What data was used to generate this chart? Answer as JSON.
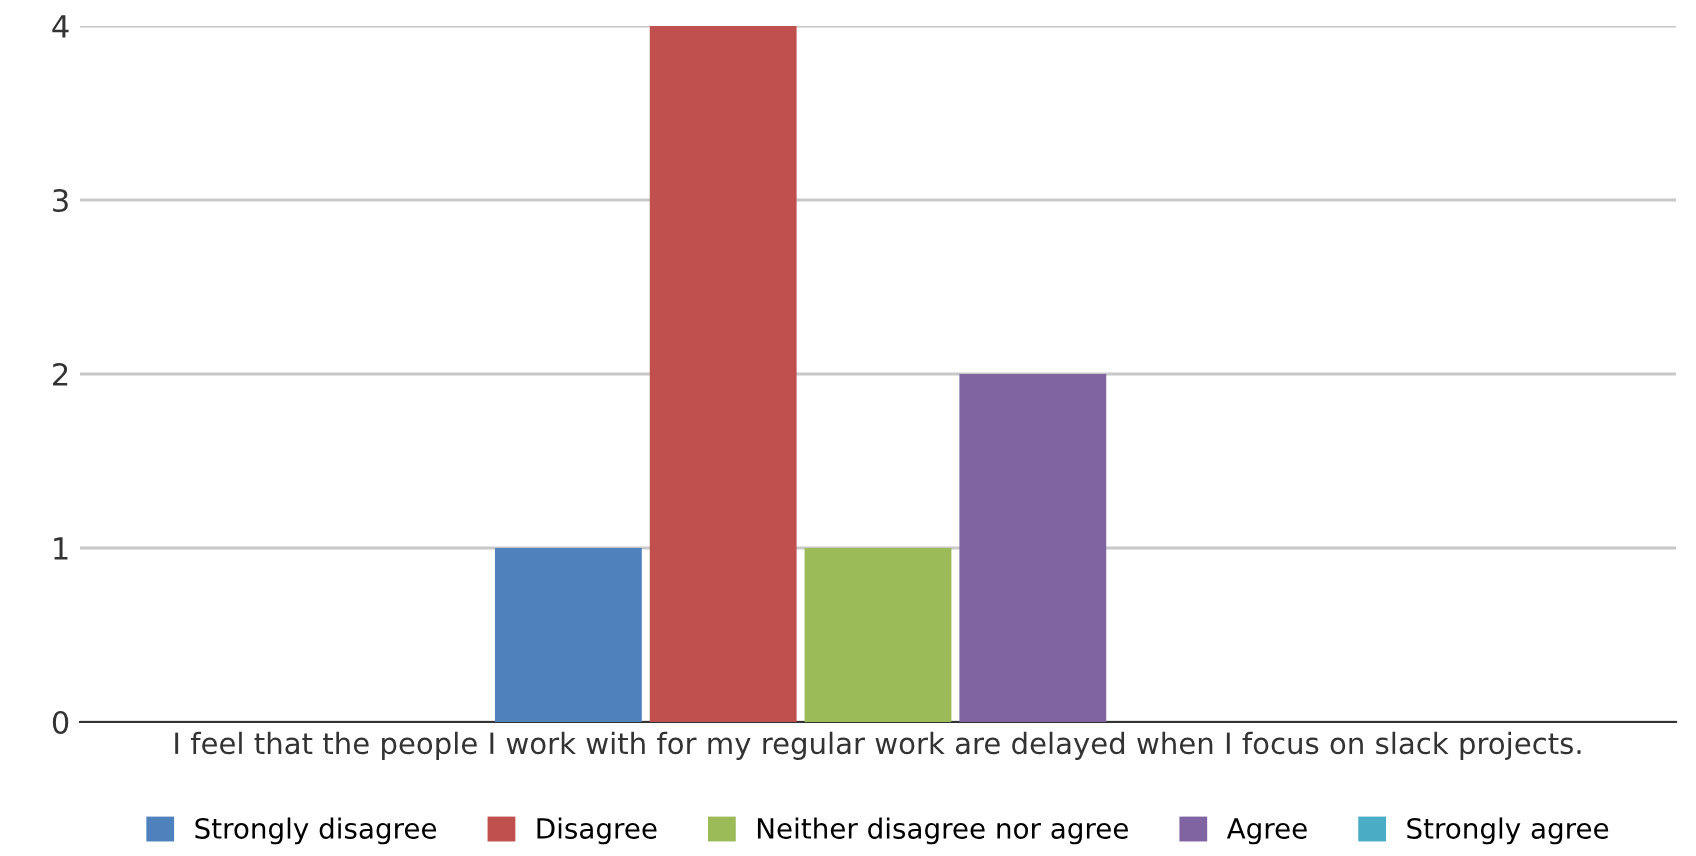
{
  "chart_data": {
    "type": "bar",
    "categories": [
      "I feel that the people I work with for my regular work are delayed when I focus on slack projects."
    ],
    "series": [
      {
        "name": "Strongly disagree",
        "color": "#4f81bd",
        "values": [
          1
        ]
      },
      {
        "name": "Disagree",
        "color": "#c0504d",
        "values": [
          4
        ]
      },
      {
        "name": "Neither disagree nor agree",
        "color": "#9bbb59",
        "values": [
          1
        ]
      },
      {
        "name": "Agree",
        "color": "#8064a2",
        "values": [
          2
        ]
      },
      {
        "name": "Strongly agree",
        "color": "#4bacc6",
        "values": [
          0
        ]
      }
    ],
    "ylim": [
      0,
      4
    ],
    "yticks": [
      0,
      1,
      2,
      3,
      4
    ],
    "grid": "y",
    "legend": "bottom"
  }
}
